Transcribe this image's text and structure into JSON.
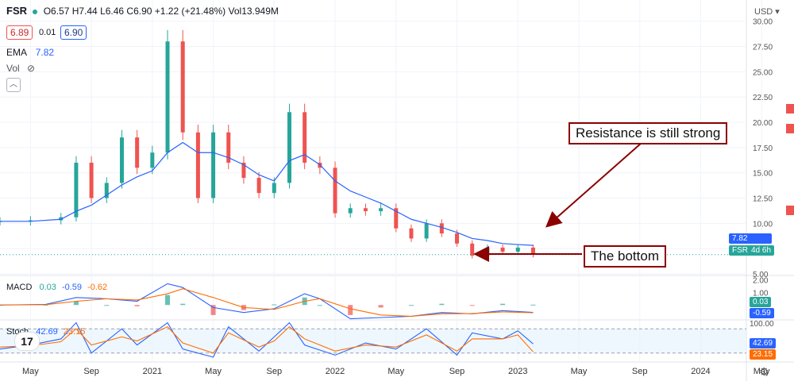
{
  "header": {
    "symbol": "FSR",
    "ohlc": "O6.57 H7.44 L6.46 C6.90 +1.22 (+21.48%) Vol13.949M",
    "bid": "6.89",
    "spread": "0.01",
    "ask": "6.90",
    "ema_label": "EMA",
    "ema_value": "7.82",
    "vol_label": "Vol",
    "currency": "USD"
  },
  "macd_legend": {
    "label": "MACD",
    "v1": "0.03",
    "v2": "-0.59",
    "v3": "-0.62"
  },
  "stoch_legend": {
    "label": "Stoch",
    "v1": "42.69",
    "v2": "23.15"
  },
  "tags": {
    "ema": "7.82",
    "symbol_tag": "FSR",
    "interval_tag": "4d 6h",
    "macd_a": "0.03",
    "macd_b": "-0.59",
    "stoch_a": "42.69",
    "stoch_b": "23.15"
  },
  "annotations": {
    "resistance": "Resistance is still strong",
    "bottom": "The bottom"
  },
  "colors": {
    "up": "#26a69a",
    "down": "#ef5350",
    "ema": "#2962ff",
    "macd": "#2962ff",
    "signal": "#ff6d00",
    "stoch_k": "#2962ff",
    "stoch_d": "#ff6d00",
    "annotation": "#8b0000"
  },
  "chart_data": [
    {
      "type": "line",
      "title": "FSR",
      "ylim": [
        5,
        31
      ],
      "x_ticks": [
        "May",
        "Sep",
        "2021",
        "May",
        "Sep",
        "2022",
        "May",
        "Sep",
        "2023",
        "May",
        "Sep",
        "2024",
        "May"
      ],
      "y_ticks": [
        "5.00",
        "7.50",
        "10.00",
        "12.50",
        "15.00",
        "17.50",
        "20.00",
        "22.50",
        "25.00",
        "27.50",
        "30.00"
      ],
      "series": [
        {
          "key": "close",
          "x": [
            "2020-03",
            "2020-05",
            "2020-07",
            "2020-08",
            "2020-09",
            "2020-10",
            "2020-11",
            "2020-12",
            "2021-01",
            "2021-02",
            "2021-03",
            "2021-04",
            "2021-05",
            "2021-06",
            "2021-07",
            "2021-08",
            "2021-09",
            "2021-10",
            "2021-11",
            "2021-12",
            "2022-01",
            "2022-02",
            "2022-03",
            "2022-04",
            "2022-05",
            "2022-06",
            "2022-07",
            "2022-08",
            "2022-09",
            "2022-10",
            "2022-11",
            "2022-12",
            "2023-01",
            "2023-02"
          ],
          "y": [
            10.2,
            10.3,
            10.6,
            16.0,
            12.5,
            14.0,
            18.5,
            15.5,
            17.0,
            28.0,
            19.0,
            12.5,
            19.0,
            16.0,
            14.5,
            13.0,
            14.0,
            21.0,
            16.0,
            15.5,
            11.0,
            11.5,
            11.2,
            11.5,
            9.5,
            8.5,
            10.0,
            9.0,
            8.0,
            6.8,
            7.6,
            7.2,
            7.6,
            6.9
          ]
        },
        {
          "name": "EMA",
          "x": [
            "2020-03",
            "2020-05",
            "2020-07",
            "2020-08",
            "2020-09",
            "2020-10",
            "2020-11",
            "2020-12",
            "2021-01",
            "2021-02",
            "2021-03",
            "2021-04",
            "2021-05",
            "2021-06",
            "2021-07",
            "2021-08",
            "2021-09",
            "2021-10",
            "2021-11",
            "2021-12",
            "2022-01",
            "2022-02",
            "2022-03",
            "2022-04",
            "2022-05",
            "2022-06",
            "2022-07",
            "2022-08",
            "2022-09",
            "2022-10",
            "2022-11",
            "2022-12",
            "2023-01",
            "2023-02"
          ],
          "y": [
            10.2,
            10.2,
            10.4,
            11.2,
            11.8,
            12.8,
            13.8,
            14.6,
            15.2,
            17.0,
            18.0,
            17.0,
            17.0,
            16.5,
            15.8,
            14.8,
            14.2,
            16.2,
            16.8,
            15.8,
            14.2,
            13.2,
            12.6,
            12.0,
            11.2,
            10.4,
            10.0,
            9.6,
            9.1,
            8.5,
            8.3,
            8.0,
            7.9,
            7.82
          ]
        }
      ]
    },
    {
      "type": "bar",
      "title": "MACD",
      "ylim": [
        -1,
        2.3
      ],
      "y_ticks": [
        "2.00",
        "1.00"
      ],
      "x": [
        "2020-03",
        "2020-06",
        "2020-08",
        "2020-10",
        "2020-12",
        "2021-02",
        "2021-03",
        "2021-05",
        "2021-07",
        "2021-09",
        "2021-11",
        "2021-12",
        "2022-02",
        "2022-04",
        "2022-06",
        "2022-08",
        "2022-10",
        "2022-12",
        "2023-02"
      ],
      "series": [
        {
          "name": "MACD",
          "values": [
            0.0,
            0.05,
            0.6,
            0.5,
            0.3,
            1.7,
            1.4,
            -0.2,
            -0.6,
            -0.3,
            0.9,
            0.5,
            -1.1,
            -1.0,
            -0.9,
            -0.6,
            -0.7,
            -0.45,
            -0.59
          ]
        },
        {
          "name": "Signal",
          "values": [
            0.0,
            0.03,
            0.3,
            0.5,
            0.4,
            0.9,
            1.3,
            0.6,
            -0.2,
            -0.35,
            0.3,
            0.5,
            -0.3,
            -0.8,
            -0.9,
            -0.7,
            -0.68,
            -0.55,
            -0.62
          ]
        },
        {
          "name": "Histogram",
          "values": [
            0.0,
            0.02,
            0.3,
            0.0,
            -0.1,
            0.8,
            0.1,
            -0.8,
            -0.4,
            0.05,
            0.6,
            0.0,
            -0.8,
            -0.2,
            0.0,
            0.1,
            -0.02,
            0.1,
            0.03
          ]
        }
      ]
    },
    {
      "type": "line",
      "title": "Stoch",
      "ylim": [
        0,
        100
      ],
      "y_ticks": [
        "100.00"
      ],
      "x": [
        "2020-03",
        "2020-05",
        "2020-07",
        "2020-08",
        "2020-09",
        "2020-11",
        "2020-12",
        "2021-02",
        "2021-03",
        "2021-05",
        "2021-06",
        "2021-08",
        "2021-09",
        "2021-10",
        "2021-11",
        "2022-01",
        "2022-03",
        "2022-05",
        "2022-07",
        "2022-09",
        "2022-10",
        "2022-12",
        "2023-01",
        "2023-02"
      ],
      "series": [
        {
          "name": "K",
          "values": [
            30,
            40,
            55,
            95,
            20,
            80,
            40,
            95,
            30,
            10,
            85,
            25,
            60,
            95,
            40,
            15,
            45,
            30,
            80,
            15,
            70,
            55,
            75,
            42.69
          ]
        },
        {
          "name": "D",
          "values": [
            35,
            38,
            48,
            80,
            40,
            60,
            50,
            85,
            45,
            20,
            70,
            35,
            50,
            85,
            55,
            25,
            40,
            35,
            65,
            25,
            55,
            55,
            65,
            23.15
          ]
        }
      ]
    }
  ]
}
